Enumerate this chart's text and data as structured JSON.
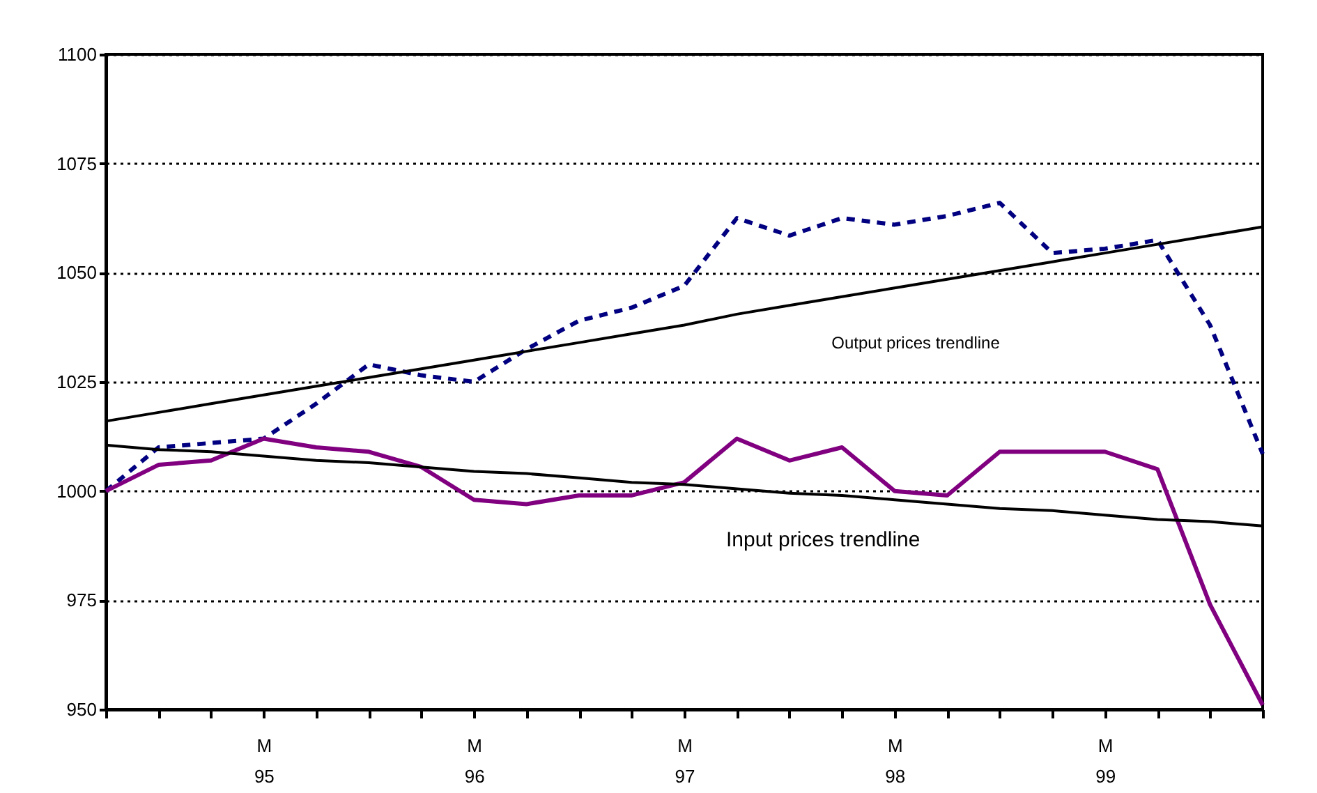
{
  "chart_data": {
    "type": "line",
    "categories": [
      null,
      null,
      null,
      "M 95",
      null,
      null,
      null,
      "M 96",
      null,
      null,
      null,
      "M 97",
      null,
      null,
      null,
      "M 98",
      null,
      null,
      null,
      "M 99",
      null,
      null,
      null
    ],
    "ylim": [
      950,
      1100
    ],
    "yticks": [
      950,
      975,
      1000,
      1025,
      1050,
      1075,
      1100
    ],
    "grid": "y",
    "series": [
      {
        "color": "#000080",
        "line_style": "dashed",
        "values": [
          1000,
          1010,
          1011,
          1012,
          1020,
          1029,
          1026.5,
          1025,
          1032.5,
          1039,
          1042,
          1047,
          1062.5,
          1058.5,
          1062.5,
          1061,
          1063,
          1066,
          1054.5,
          1055.5,
          1057.5,
          1038,
          1008.5
        ]
      },
      {
        "color": "#800080",
        "line_style": "solid",
        "values": [
          1000,
          1006,
          1007,
          1012,
          1010,
          1009,
          1005.5,
          998,
          997,
          999,
          999,
          1002,
          1012,
          1007,
          1010,
          1000,
          999,
          1009,
          1009,
          1009,
          1005,
          974,
          951
        ]
      },
      {
        "type": "line",
        "color": "#000000",
        "line_style": "solid",
        "values": [
          1016,
          1018,
          1020,
          1022,
          1024,
          1026,
          1028,
          1030,
          1032,
          1034,
          1036,
          1038,
          1040.5,
          1042.5,
          1044.5,
          1046.5,
          1048.5,
          1050.5,
          1052.5,
          1054.5,
          1056.5,
          1058.5,
          1060.5
        ]
      },
      {
        "type": "line",
        "color": "#000000",
        "line_style": "solid",
        "values": [
          1010.5,
          1009.5,
          1009,
          1008,
          1007,
          1006.5,
          1005.5,
          1004.5,
          1004,
          1003,
          1002,
          1001.5,
          1000.5,
          999.5,
          999,
          998,
          997,
          996,
          995.5,
          994.5,
          993.5,
          993,
          992
        ]
      }
    ],
    "annotations": [
      "Output prices trendline",
      "Input prices trendline"
    ]
  }
}
